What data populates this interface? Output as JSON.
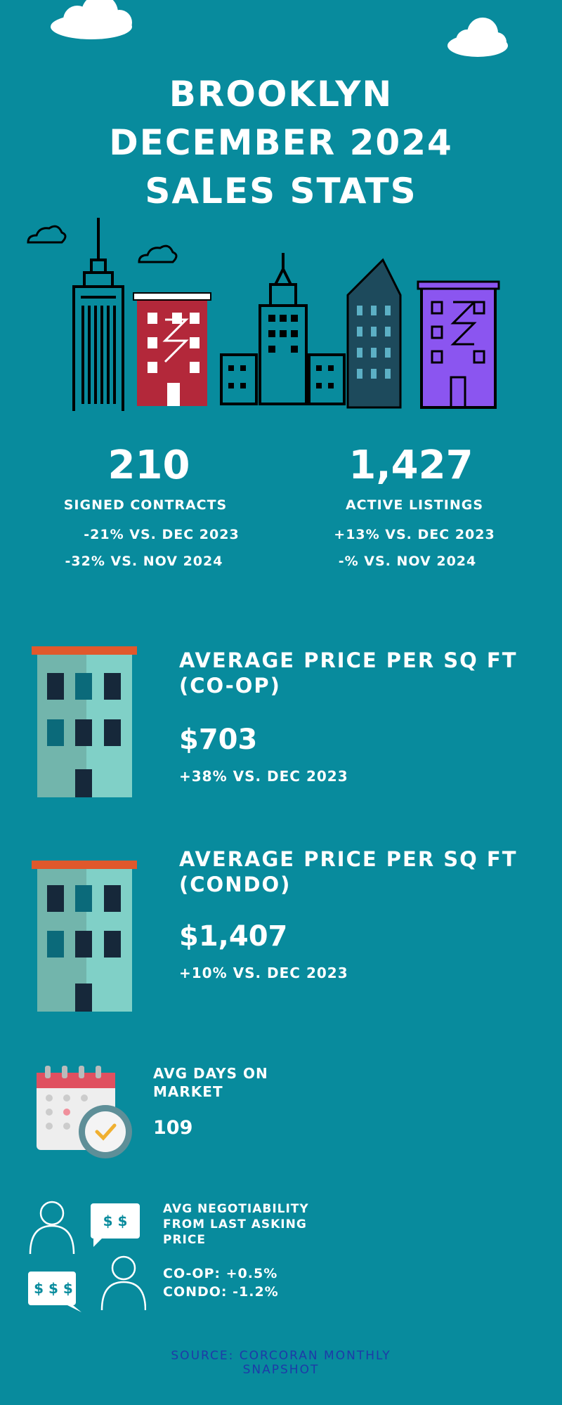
{
  "header": {
    "title_line1": "BROOKLYN",
    "title_line2": "DECEMBER 2024",
    "title_line3": "SALES STATS"
  },
  "stats": {
    "contracts": {
      "value": "210",
      "label": "SIGNED CONTRACTS",
      "cmp1": "-21% VS. DEC 2023",
      "cmp2": "-32% VS. NOV 2024"
    },
    "listings": {
      "value": "1,427",
      "label": "ACTIVE LISTINGS",
      "cmp1": "+13% VS. DEC 2023",
      "cmp2": "-% VS. NOV 2024"
    }
  },
  "coop": {
    "heading1": "AVERAGE PRICE PER SQ FT",
    "heading2": "(CO-OP)",
    "price": "$703",
    "cmp": "+38% VS. DEC 2023"
  },
  "condo": {
    "heading1": "AVERAGE PRICE PER SQ FT",
    "heading2": "(CONDO)",
    "price": "$1,407",
    "cmp": "+10% VS. DEC 2023"
  },
  "dom": {
    "label1": "AVG DAYS ON",
    "label2": "MARKET",
    "value": "109"
  },
  "negotiability": {
    "label1": "AVG NEGOTIABILITY",
    "label2": "FROM LAST ASKING",
    "label3": "PRICE",
    "coop": "CO-OP: +0.5%",
    "condo": "CONDO: -1.2%",
    "bubble1": "$ $",
    "bubble2": "$ $ $"
  },
  "footer": {
    "source1": "SOURCE: CORCORAN MONTHLY",
    "source2": "SNAPSHOT"
  },
  "colors": {
    "background": "#088b9d",
    "building_red": "#b3283a",
    "building_purple": "#8b55f0",
    "source_text": "#1e3aa8"
  },
  "icons": [
    "cloud-icon",
    "empire-state-icon",
    "red-building-icon",
    "skyscraper-icon",
    "flatiron-icon",
    "purple-building-icon",
    "apartment-icon",
    "calendar-clock-icon",
    "negotiation-people-icon"
  ]
}
